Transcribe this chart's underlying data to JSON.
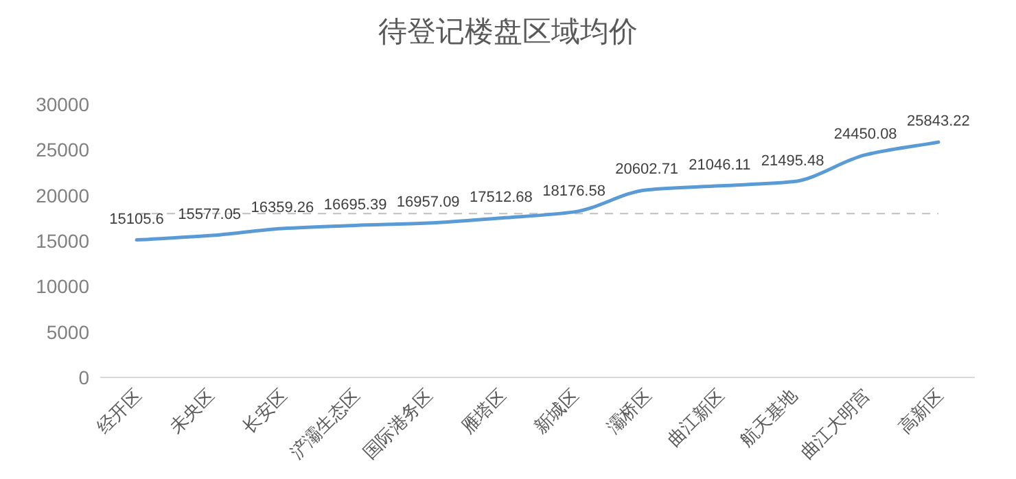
{
  "chart_data": {
    "type": "line",
    "title": "待登记楼盘区域均价",
    "categories": [
      "经开区",
      "未央区",
      "长安区",
      "浐灞生态区",
      "国际港务区",
      "雁塔区",
      "新城区",
      "灞桥区",
      "曲江新区",
      "航天基地",
      "曲江大明宫",
      "高新区"
    ],
    "series": [
      {
        "color": "#5b9bd5",
        "values": [
          15105.6,
          15577.05,
          16359.26,
          16695.39,
          16957.09,
          17512.68,
          18176.58,
          20602.71,
          21046.11,
          21495.48,
          24450.08,
          25843.22
        ]
      }
    ],
    "ylim": [
      0,
      30000
    ],
    "yticks": [
      0,
      5000,
      10000,
      15000,
      20000,
      25000,
      30000
    ],
    "ref_lines": [
      {
        "axis": "y",
        "value": 18000,
        "color": "#bfbfbf",
        "line_style": "dashed"
      }
    ],
    "data_labels": true,
    "grid": false,
    "marker": "none",
    "line_style": "solid"
  }
}
